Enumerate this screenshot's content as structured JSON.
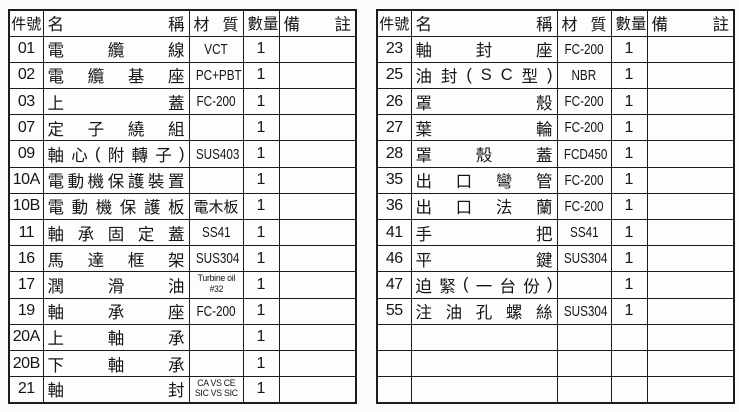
{
  "page": {
    "background_color": "#fcfcfc",
    "line_color": "#1c1c1c",
    "text_color": "#151515"
  },
  "tables": [
    {
      "headers": {
        "part_no": "件號",
        "name": "名稱",
        "material": "材質",
        "qty": "數量",
        "remarks": "備註"
      },
      "rows": [
        {
          "no": "01",
          "name": "電纜線",
          "material": "VCT",
          "qty": "1",
          "remarks": ""
        },
        {
          "no": "02",
          "name": "電纜基座",
          "material": "PC+PBT",
          "qty": "1",
          "remarks": ""
        },
        {
          "no": "03",
          "name": "上蓋",
          "material": "FC-200",
          "qty": "1",
          "remarks": ""
        },
        {
          "no": "07",
          "name": "定子繞組",
          "material": "",
          "qty": "1",
          "remarks": ""
        },
        {
          "no": "09",
          "name": "軸心(附轉子)",
          "material": "SUS403",
          "qty": "1",
          "remarks": ""
        },
        {
          "no": "10A",
          "name": "電動機保護裝置",
          "material": "",
          "qty": "1",
          "remarks": ""
        },
        {
          "no": "10B",
          "name": "電動機保護板",
          "material": "電木板",
          "qty": "1",
          "remarks": ""
        },
        {
          "no": "11",
          "name": "軸承固定蓋",
          "material": "SS41",
          "qty": "1",
          "remarks": ""
        },
        {
          "no": "16",
          "name": "馬達框架",
          "material": "SUS304",
          "qty": "1",
          "remarks": ""
        },
        {
          "no": "17",
          "name": "潤滑油",
          "material": "Turbine oil\n#32",
          "qty": "1",
          "remarks": ""
        },
        {
          "no": "19",
          "name": "軸承座",
          "material": "FC-200",
          "qty": "1",
          "remarks": ""
        },
        {
          "no": "20A",
          "name": "上軸承",
          "material": "",
          "qty": "1",
          "remarks": ""
        },
        {
          "no": "20B",
          "name": "下軸承",
          "material": "",
          "qty": "1",
          "remarks": ""
        },
        {
          "no": "21",
          "name": "軸封",
          "material": "CA VS CE\nSIC VS SIC",
          "qty": "1",
          "remarks": ""
        }
      ]
    },
    {
      "headers": {
        "part_no": "件號",
        "name": "名稱",
        "material": "材質",
        "qty": "數量",
        "remarks": "備註"
      },
      "rows": [
        {
          "no": "23",
          "name": "軸封座",
          "material": "FC-200",
          "qty": "1",
          "remarks": ""
        },
        {
          "no": "25",
          "name": "油封(SC型)",
          "material": "NBR",
          "qty": "1",
          "remarks": ""
        },
        {
          "no": "26",
          "name": "罩殼",
          "material": "FC-200",
          "qty": "1",
          "remarks": ""
        },
        {
          "no": "27",
          "name": "葉輪",
          "material": "FC-200",
          "qty": "1",
          "remarks": ""
        },
        {
          "no": "28",
          "name": "罩殼蓋",
          "material": "FCD450",
          "qty": "1",
          "remarks": ""
        },
        {
          "no": "35",
          "name": "出口彎管",
          "material": "FC-200",
          "qty": "1",
          "remarks": ""
        },
        {
          "no": "36",
          "name": "出口法蘭",
          "material": "FC-200",
          "qty": "1",
          "remarks": ""
        },
        {
          "no": "41",
          "name": "手把",
          "material": "SS41",
          "qty": "1",
          "remarks": ""
        },
        {
          "no": "46",
          "name": "平鍵",
          "material": "SUS304",
          "qty": "1",
          "remarks": ""
        },
        {
          "no": "47",
          "name": "迫緊(一台份)",
          "material": "",
          "qty": "1",
          "remarks": ""
        },
        {
          "no": "55",
          "name": "注油孔螺絲",
          "material": "SUS304",
          "qty": "1",
          "remarks": ""
        },
        {
          "no": "",
          "name": "",
          "material": "",
          "qty": "",
          "remarks": ""
        },
        {
          "no": "",
          "name": "",
          "material": "",
          "qty": "",
          "remarks": ""
        },
        {
          "no": "",
          "name": "",
          "material": "",
          "qty": "",
          "remarks": ""
        }
      ]
    }
  ]
}
